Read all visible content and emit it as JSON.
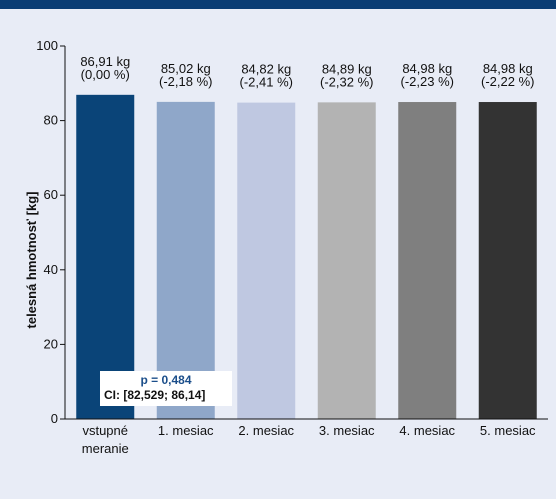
{
  "chart_data": {
    "type": "bar",
    "title": "",
    "xlabel": "",
    "ylabel": "telesná hmotnosť [kg]",
    "ylim": [
      0,
      100
    ],
    "yticks": [
      0,
      20,
      40,
      60,
      80,
      100
    ],
    "grid": false,
    "categories": [
      [
        "vstupné",
        "meranie"
      ],
      [
        "1. mesiac"
      ],
      [
        "2. mesiac"
      ],
      [
        "3. mesiac"
      ],
      [
        "4. mesiac"
      ],
      [
        "5. mesiac"
      ]
    ],
    "values": [
      86.91,
      85.02,
      84.82,
      84.89,
      84.98,
      84.98
    ],
    "value_labels": [
      "86,91 kg",
      "85,02 kg",
      "84,82 kg",
      "84,89 kg",
      "84,98 kg",
      "84,98 kg"
    ],
    "pct_labels": [
      "(0,00 %)",
      "(-2,18 %)",
      "(-2,41 %)",
      "(-2,32 %)",
      "(-2,23 %)",
      "(-2,22 %)"
    ],
    "colors": [
      "#0a4478",
      "#8fa7c9",
      "#bfc8e1",
      "#b3b3b3",
      "#7f7f7f",
      "#333333"
    ]
  },
  "annotation": {
    "p_value": "p = 0,484",
    "ci": "CI: [82,529; 86,14]"
  }
}
